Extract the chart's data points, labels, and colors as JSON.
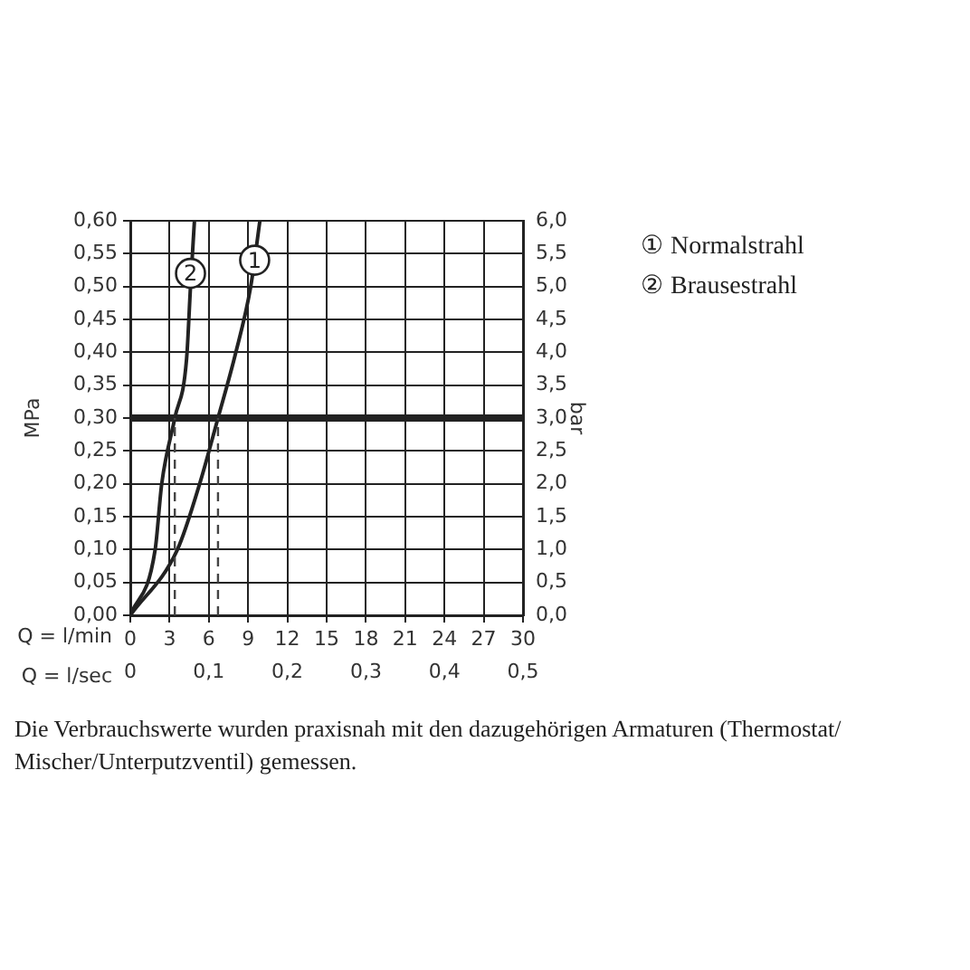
{
  "chart_data": {
    "type": "line",
    "xlabel": "Q = l/min",
    "x2label": "Q = l/sec",
    "ylabel": "MPa",
    "y2label": "bar",
    "xlim": [
      0,
      30
    ],
    "xticks": [
      0,
      3,
      6,
      9,
      12,
      15,
      18,
      21,
      24,
      27,
      30
    ],
    "x2lim": [
      0,
      0.5
    ],
    "x2ticks": [
      0,
      {
        "value": 0.1,
        "label": "0,1"
      },
      {
        "value": 0.2,
        "label": "0,2"
      },
      {
        "value": 0.3,
        "label": "0,3"
      },
      {
        "value": 0.4,
        "label": "0,4"
      },
      {
        "value": 0.5,
        "label": "0,5"
      }
    ],
    "ylim": [
      0,
      0.6
    ],
    "yticks": [
      {
        "value": 0,
        "label": "0,00"
      },
      {
        "value": 0.05,
        "label": "0,05"
      },
      {
        "value": 0.1,
        "label": "0,10"
      },
      {
        "value": 0.15,
        "label": "0,15"
      },
      {
        "value": 0.2,
        "label": "0,20"
      },
      {
        "value": 0.25,
        "label": "0,25"
      },
      {
        "value": 0.3,
        "label": "0,30"
      },
      {
        "value": 0.35,
        "label": "0,35"
      },
      {
        "value": 0.4,
        "label": "0,40"
      },
      {
        "value": 0.45,
        "label": "0,45"
      },
      {
        "value": 0.5,
        "label": "0,50"
      },
      {
        "value": 0.55,
        "label": "0,55"
      },
      {
        "value": 0.6,
        "label": "0,60"
      }
    ],
    "y2lim": [
      0,
      6
    ],
    "y2ticks": [
      {
        "value": 0,
        "label": "0,0"
      },
      {
        "value": 0.5,
        "label": "0,5"
      },
      {
        "value": 1,
        "label": "1,0"
      },
      {
        "value": 1.5,
        "label": "1,5"
      },
      {
        "value": 2,
        "label": "2,0"
      },
      {
        "value": 2.5,
        "label": "2,5"
      },
      {
        "value": 3,
        "label": "3,0"
      },
      {
        "value": 3.5,
        "label": "3,5"
      },
      {
        "value": 4,
        "label": "4,0"
      },
      {
        "value": 4.5,
        "label": "4,5"
      },
      {
        "value": 5,
        "label": "5,0"
      },
      {
        "value": 5.5,
        "label": "5,5"
      },
      {
        "value": 6,
        "label": "6,0"
      }
    ],
    "grid": true,
    "legend": "right",
    "marker": "none",
    "line_style": "solid",
    "series": [
      {
        "name": "① Normalstrahl",
        "color": "#222222",
        "x": [
          0,
          3.6,
          5.3,
          6.7,
          8.0,
          9.2,
          9.9
        ],
        "values": [
          0,
          0.1,
          0.2,
          0.3,
          0.395,
          0.5,
          0.6
        ]
      },
      {
        "name": "② Brausestrahl",
        "color": "#222222",
        "x": [
          0,
          1.9,
          2.4,
          3.4,
          4.3,
          4.6,
          4.9
        ],
        "values": [
          0,
          0.1,
          0.2,
          0.3,
          0.39,
          0.5,
          0.6
        ]
      }
    ],
    "ref_lines": [
      {
        "axis": "y",
        "value": 0.3,
        "color": "#222222"
      },
      {
        "axis": "x",
        "value": 3.4,
        "line_style": "dashed",
        "color": "#444444"
      },
      {
        "axis": "x",
        "value": 6.7,
        "line_style": "dashed",
        "color": "#444444"
      }
    ],
    "annotations": [
      {
        "text": "1",
        "x": 9.5,
        "y": 0.54
      },
      {
        "text": "2",
        "x": 4.6,
        "y": 0.52
      },
      "Die Verbrauchswerte wurden praxisnah mit den dazugehörigen Armaturen (Thermostat/ Mischer/Unterputzventil) gemessen."
    ]
  }
}
